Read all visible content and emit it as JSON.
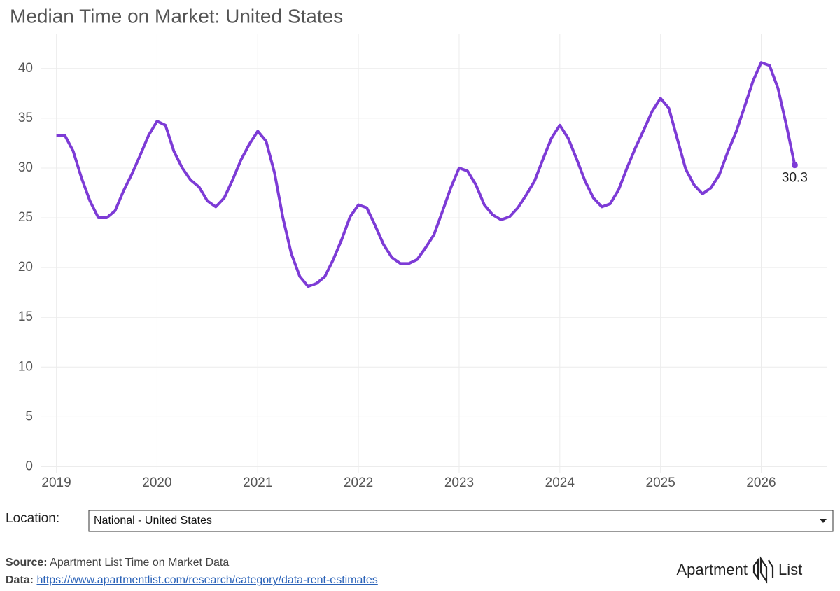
{
  "chart_data": {
    "type": "line",
    "title": "Median Time on Market: United States",
    "x": [
      2019,
      2019.083,
      2019.167,
      2019.25,
      2019.333,
      2019.417,
      2019.5,
      2019.583,
      2019.667,
      2019.75,
      2019.833,
      2019.917,
      2020,
      2020.083,
      2020.167,
      2020.25,
      2020.333,
      2020.417,
      2020.5,
      2020.583,
      2020.667,
      2020.75,
      2020.833,
      2020.917,
      2021,
      2021.083,
      2021.167,
      2021.25,
      2021.333,
      2021.417,
      2021.5,
      2021.583,
      2021.667,
      2021.75,
      2021.833,
      2021.917,
      2022,
      2022.083,
      2022.167,
      2022.25,
      2022.333,
      2022.417,
      2022.5,
      2022.583,
      2022.667,
      2022.75,
      2022.833,
      2022.917,
      2023,
      2023.083,
      2023.167,
      2023.25,
      2023.333,
      2023.417,
      2023.5,
      2023.583,
      2023.667,
      2023.75,
      2023.833,
      2023.917,
      2024,
      2024.083,
      2024.167,
      2024.25,
      2024.333,
      2024.417,
      2024.5,
      2024.583,
      2024.667,
      2024.75,
      2024.833,
      2024.917,
      2025,
      2025.083,
      2025.167,
      2025.25,
      2025.333,
      2025.417,
      2025.5,
      2025.583,
      2025.667,
      2025.75,
      2025.833,
      2025.917,
      2026,
      2026.083,
      2026.167,
      2026.25,
      2026.333
    ],
    "values": [
      33.3,
      33.3,
      31.7,
      29.0,
      26.7,
      25.0,
      25.0,
      25.7,
      27.7,
      29.4,
      31.3,
      33.3,
      34.7,
      34.3,
      31.7,
      30.0,
      28.8,
      28.1,
      26.7,
      26.1,
      27.0,
      28.8,
      30.8,
      32.4,
      33.7,
      32.7,
      29.5,
      25.0,
      21.4,
      19.1,
      18.1,
      18.4,
      19.1,
      20.8,
      22.8,
      25.1,
      26.3,
      26.0,
      24.2,
      22.3,
      21.0,
      20.4,
      20.4,
      20.8,
      22.0,
      23.3,
      25.6,
      28.0,
      30.0,
      29.7,
      28.3,
      26.3,
      25.3,
      24.8,
      25.1,
      26.0,
      27.3,
      28.7,
      30.9,
      33.0,
      34.3,
      33.0,
      30.9,
      28.7,
      27.0,
      26.1,
      26.4,
      27.8,
      30.0,
      32.0,
      33.8,
      35.7,
      37.0,
      36.0,
      32.9,
      29.9,
      28.3,
      27.4,
      28.0,
      29.3,
      31.6,
      33.6,
      36.1,
      38.7,
      40.6,
      40.3,
      38.0,
      34.3,
      30.3
    ],
    "color": "#7d3bd6",
    "xlim": [
      2018.85,
      2026.65
    ],
    "xticks": [
      2019,
      2020,
      2021,
      2022,
      2023,
      2024,
      2025,
      2026
    ],
    "ylim": [
      -0.6,
      43.5
    ],
    "yticks": [
      0,
      5,
      10,
      15,
      20,
      25,
      30,
      35,
      40
    ],
    "grid": true
  },
  "controls": {
    "location_label": "Location:",
    "location_value": "National - United States"
  },
  "footer": {
    "source_label": "Source:",
    "source_text": "Apartment List Time on Market Data",
    "data_label": "Data:",
    "data_url": "https://www.apartmentlist.com/research/category/data-rent-estimates"
  },
  "logo": {
    "word1": "Apartment",
    "word2": "List"
  }
}
